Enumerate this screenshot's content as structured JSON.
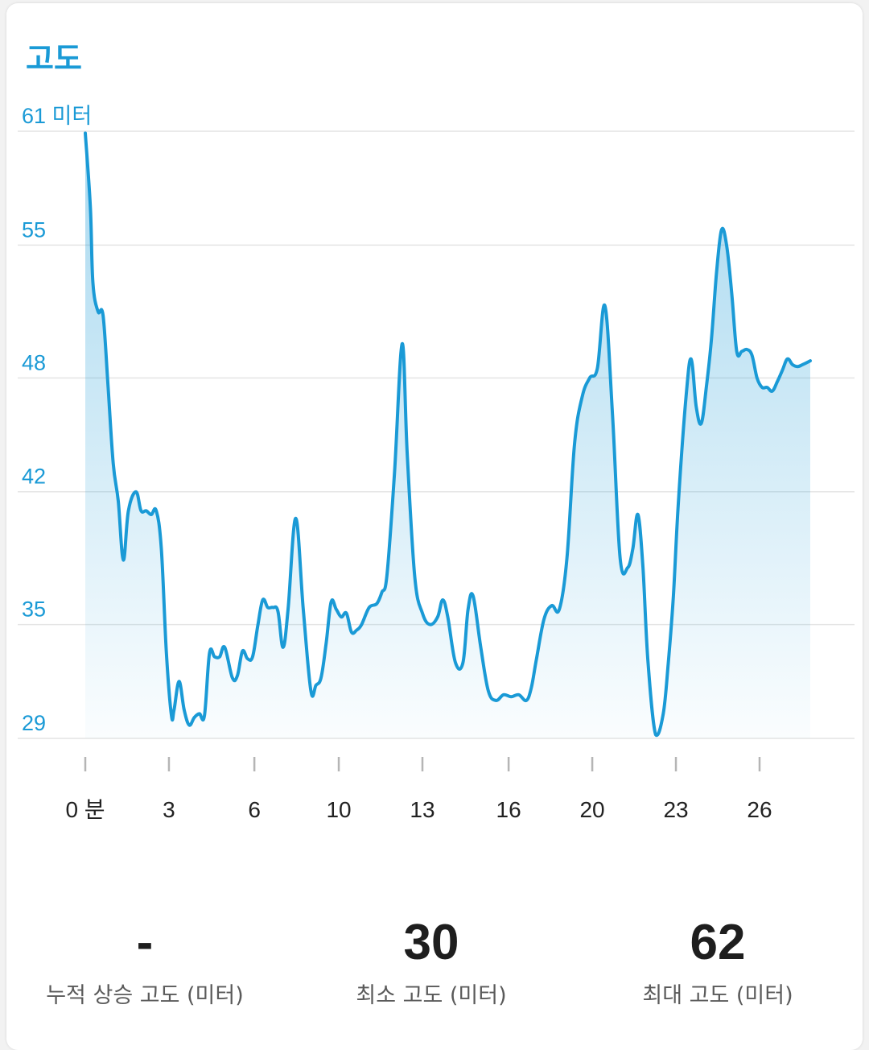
{
  "header": {
    "title": "고도"
  },
  "chart_data": {
    "type": "area",
    "color": "#1a9ad6",
    "ylim": [
      29,
      61
    ],
    "xlim": [
      0,
      28.6
    ],
    "y_ticks": [
      {
        "value": 61,
        "label": "61 미터"
      },
      {
        "value": 55,
        "label": "55"
      },
      {
        "value": 48,
        "label": "48"
      },
      {
        "value": 42,
        "label": "42"
      },
      {
        "value": 35,
        "label": "35"
      },
      {
        "value": 29,
        "label": "29"
      }
    ],
    "x_ticks": [
      {
        "value": 0,
        "label": "0 분"
      },
      {
        "value": 3.3,
        "label": "3"
      },
      {
        "value": 6.67,
        "label": "6"
      },
      {
        "value": 10,
        "label": "10"
      },
      {
        "value": 13.3,
        "label": "13"
      },
      {
        "value": 16.7,
        "label": "16"
      },
      {
        "value": 20,
        "label": "20"
      },
      {
        "value": 23.3,
        "label": "23"
      },
      {
        "value": 26.6,
        "label": "26"
      }
    ],
    "x": [
      0,
      0.2,
      0.3,
      0.5,
      0.7,
      0.9,
      1.1,
      1.3,
      1.5,
      1.7,
      2.0,
      2.2,
      2.4,
      2.6,
      2.8,
      3.0,
      3.2,
      3.4,
      3.5,
      3.7,
      3.9,
      4.1,
      4.3,
      4.5,
      4.7,
      4.9,
      5.1,
      5.3,
      5.5,
      5.8,
      6.0,
      6.2,
      6.4,
      6.6,
      6.8,
      7.0,
      7.2,
      7.4,
      7.6,
      7.8,
      8.0,
      8.3,
      8.6,
      8.9,
      9.1,
      9.3,
      9.5,
      9.7,
      9.9,
      10.1,
      10.3,
      10.5,
      10.7,
      10.9,
      11.2,
      11.5,
      11.7,
      11.9,
      12.2,
      12.5,
      12.7,
      13.0,
      13.3,
      13.6,
      13.9,
      14.1,
      14.3,
      14.6,
      14.9,
      15.1,
      15.3,
      15.6,
      15.9,
      16.2,
      16.5,
      16.8,
      17.1,
      17.4,
      17.6,
      17.8,
      18.1,
      18.4,
      18.7,
      19.0,
      19.3,
      19.6,
      19.9,
      20.2,
      20.5,
      20.8,
      21.1,
      21.4,
      21.6,
      21.8,
      22.0,
      22.2,
      22.5,
      22.8,
      23.0,
      23.2,
      23.4,
      23.7,
      23.9,
      24.1,
      24.3,
      24.5,
      24.7,
      24.9,
      25.1,
      25.3,
      25.5,
      25.7,
      25.9,
      26.1,
      26.3,
      26.5,
      26.7,
      26.9,
      27.1,
      27.3,
      27.5,
      27.7,
      27.9,
      28.1,
      28.3,
      28.6
    ],
    "values": [
      60.9,
      57.0,
      53.0,
      51.5,
      51.3,
      47.5,
      43.5,
      41.5,
      38.4,
      41.0,
      42.0,
      41.0,
      41.0,
      40.8,
      41.0,
      39.0,
      33.5,
      30.2,
      30.5,
      32.0,
      30.5,
      29.7,
      30.1,
      30.3,
      30.2,
      33.5,
      33.3,
      33.3,
      33.8,
      32.2,
      32.3,
      33.6,
      33.2,
      33.3,
      34.9,
      36.3,
      35.9,
      35.9,
      35.7,
      33.8,
      35.8,
      40.6,
      35.8,
      31.5,
      31.8,
      32.2,
      34.0,
      36.2,
      35.8,
      35.4,
      35.6,
      34.6,
      34.7,
      35.0,
      35.9,
      36.1,
      36.7,
      37.6,
      43.0,
      49.8,
      44.0,
      37.5,
      35.6,
      35.0,
      35.4,
      36.3,
      35.4,
      33.0,
      33.0,
      35.8,
      36.5,
      33.8,
      31.5,
      31.0,
      31.3,
      31.2,
      31.3,
      31.0,
      31.7,
      33.2,
      35.3,
      36.0,
      35.8,
      38.5,
      44.5,
      47.0,
      48.0,
      48.5,
      51.8,
      46.0,
      38.5,
      38.0,
      39.0,
      40.8,
      38.0,
      33.0,
      29.2,
      30.3,
      33.0,
      36.5,
      41.5,
      47.0,
      49.0,
      46.5,
      45.6,
      47.5,
      50.0,
      53.5,
      55.8,
      55.0,
      52.5,
      49.4,
      49.4,
      49.5,
      49.2,
      48.0,
      47.5,
      47.5,
      47.3,
      47.8,
      48.4,
      49.0,
      48.7,
      48.6,
      48.7,
      48.9
    ]
  },
  "stats": [
    {
      "value": "-",
      "label": "누적 상승 고도 (미터)"
    },
    {
      "value": "30",
      "label": "최소 고도 (미터)"
    },
    {
      "value": "62",
      "label": "최대 고도 (미터)"
    }
  ]
}
